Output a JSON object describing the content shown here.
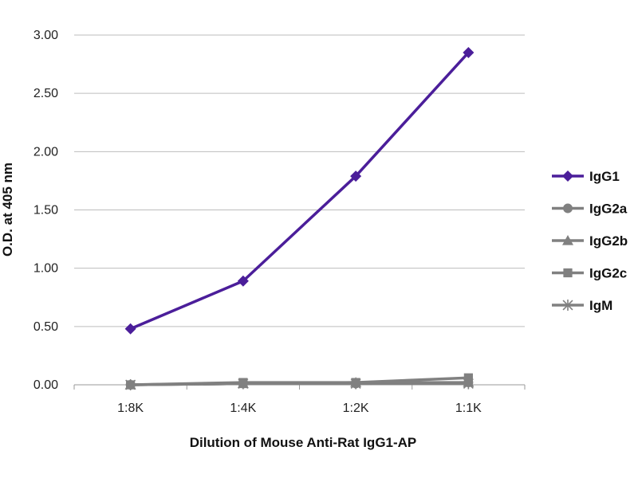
{
  "chart_data": {
    "type": "line",
    "title": "",
    "xlabel": "Dilution of Mouse Anti-Rat IgG1-AP",
    "ylabel": "O.D. at 405 nm",
    "ylim": [
      0,
      3.0
    ],
    "y_ticks": [
      "3.00",
      "2.50",
      "2.00",
      "1.50",
      "1.00",
      "0.50",
      "0.00"
    ],
    "categories": [
      "1:8K",
      "1:4K",
      "1:2K",
      "1:1K"
    ],
    "grid": "horizontal",
    "legend_position": "right",
    "series": [
      {
        "name": "IgG1",
        "values": [
          0.48,
          0.89,
          1.79,
          2.85
        ],
        "color": "#4B1E9A",
        "marker": "diamond"
      },
      {
        "name": "IgG2a",
        "values": [
          0.0,
          0.01,
          0.01,
          0.02
        ],
        "color": "#808080",
        "marker": "circle"
      },
      {
        "name": "IgG2b",
        "values": [
          0.0,
          0.01,
          0.02,
          0.02
        ],
        "color": "#808080",
        "marker": "triangle"
      },
      {
        "name": "IgG2c",
        "values": [
          0.0,
          0.02,
          0.02,
          0.06
        ],
        "color": "#808080",
        "marker": "square"
      },
      {
        "name": "IgM",
        "values": [
          0.0,
          0.01,
          0.01,
          0.01
        ],
        "color": "#808080",
        "marker": "star"
      }
    ]
  }
}
